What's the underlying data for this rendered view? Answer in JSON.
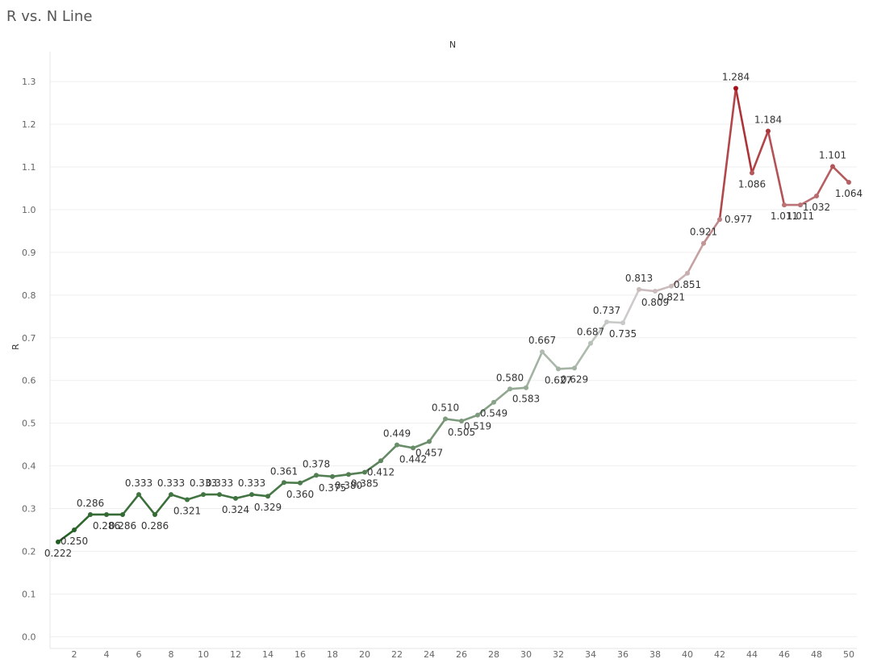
{
  "chart_data": {
    "type": "line",
    "title": "R vs. N Line",
    "xlabel": "N",
    "ylabel": "R",
    "x": [
      1,
      2,
      3,
      4,
      5,
      6,
      7,
      8,
      9,
      10,
      11,
      12,
      13,
      14,
      15,
      16,
      17,
      18,
      19,
      20,
      21,
      22,
      23,
      24,
      25,
      26,
      27,
      28,
      29,
      30,
      31,
      32,
      33,
      34,
      35,
      36,
      37,
      38,
      39,
      40,
      41,
      42,
      43,
      44,
      45,
      46,
      47,
      48,
      49,
      50
    ],
    "series": [
      {
        "values": [
          0.222,
          0.25,
          0.286,
          0.286,
          0.286,
          0.333,
          0.286,
          0.333,
          0.321,
          0.333,
          0.333,
          0.324,
          0.333,
          0.329,
          0.361,
          0.36,
          0.378,
          0.375,
          0.38,
          0.385,
          0.412,
          0.449,
          0.442,
          0.457,
          0.51,
          0.505,
          0.519,
          0.549,
          0.58,
          0.583,
          0.667,
          0.627,
          0.629,
          0.687,
          0.737,
          0.735,
          0.813,
          0.809,
          0.821,
          0.851,
          0.921,
          0.977,
          1.284,
          1.086,
          1.184,
          1.011,
          1.011,
          1.032,
          1.101,
          1.064
        ]
      }
    ],
    "labels": [
      "0.222",
      "0.250",
      "0.286",
      "0.286",
      "0.286",
      "0.333",
      "0.286",
      "0.333",
      "0.321",
      "0.333",
      "0.333",
      "0.324",
      "0.333",
      "0.329",
      "0.361",
      "0.360",
      "0.378",
      "0.375",
      "0.380",
      "0.385",
      "0.412",
      "0.449",
      "0.442",
      "0.457",
      "0.510",
      "0.505",
      "0.519",
      "0.549",
      "0.580",
      "0.583",
      "0.667",
      "0.627",
      "0.629",
      "0.687",
      "0.737",
      "0.735",
      "0.813",
      "0.809",
      "0.821",
      "0.851",
      "0.921",
      "0.977",
      "1.284",
      "1.086",
      "1.184",
      "1.011",
      "1.011",
      "1.032",
      "1.101",
      "1.064"
    ],
    "xticks": [
      2,
      4,
      6,
      8,
      10,
      12,
      14,
      16,
      18,
      20,
      22,
      24,
      26,
      28,
      30,
      32,
      34,
      36,
      38,
      40,
      42,
      44,
      46,
      48,
      50
    ],
    "xtick_labels": [
      "2",
      "4",
      "6",
      "8",
      "10",
      "12",
      "14",
      "16",
      "18",
      "20",
      "22",
      "24",
      "26",
      "28",
      "30",
      "32",
      "34",
      "36",
      "38",
      "40",
      "42",
      "44",
      "46",
      "48",
      "50"
    ],
    "yticks": [
      0.0,
      0.1,
      0.2,
      0.3,
      0.4,
      0.5,
      0.6,
      0.7,
      0.8,
      0.9,
      1.0,
      1.1,
      1.2,
      1.3
    ],
    "ytick_labels": [
      "0.0",
      "0.1",
      "0.2",
      "0.3",
      "0.4",
      "0.5",
      "0.6",
      "0.7",
      "0.8",
      "0.9",
      "1.0",
      "1.1",
      "1.2",
      "1.3"
    ],
    "xlim": [
      0.5,
      50.5
    ],
    "ylim": [
      -0.02,
      1.37
    ],
    "grid": true,
    "color_scale": {
      "low": "#1f5e1f",
      "mid": "#cfcfcf",
      "high": "#a50f15"
    },
    "label_positions": [
      "below",
      "below",
      "above",
      "below",
      "below",
      "above",
      "below",
      "above",
      "below",
      "above",
      "above",
      "below",
      "above",
      "below",
      "above",
      "below",
      "above",
      "below",
      "below",
      "below",
      "below",
      "above",
      "below",
      "below",
      "above",
      "below",
      "below",
      "below",
      "above",
      "below",
      "above",
      "below",
      "below",
      "above",
      "above",
      "below",
      "above",
      "below",
      "below",
      "below",
      "above",
      "right",
      "above",
      "below",
      "above",
      "below",
      "below",
      "below",
      "above",
      "below"
    ]
  }
}
